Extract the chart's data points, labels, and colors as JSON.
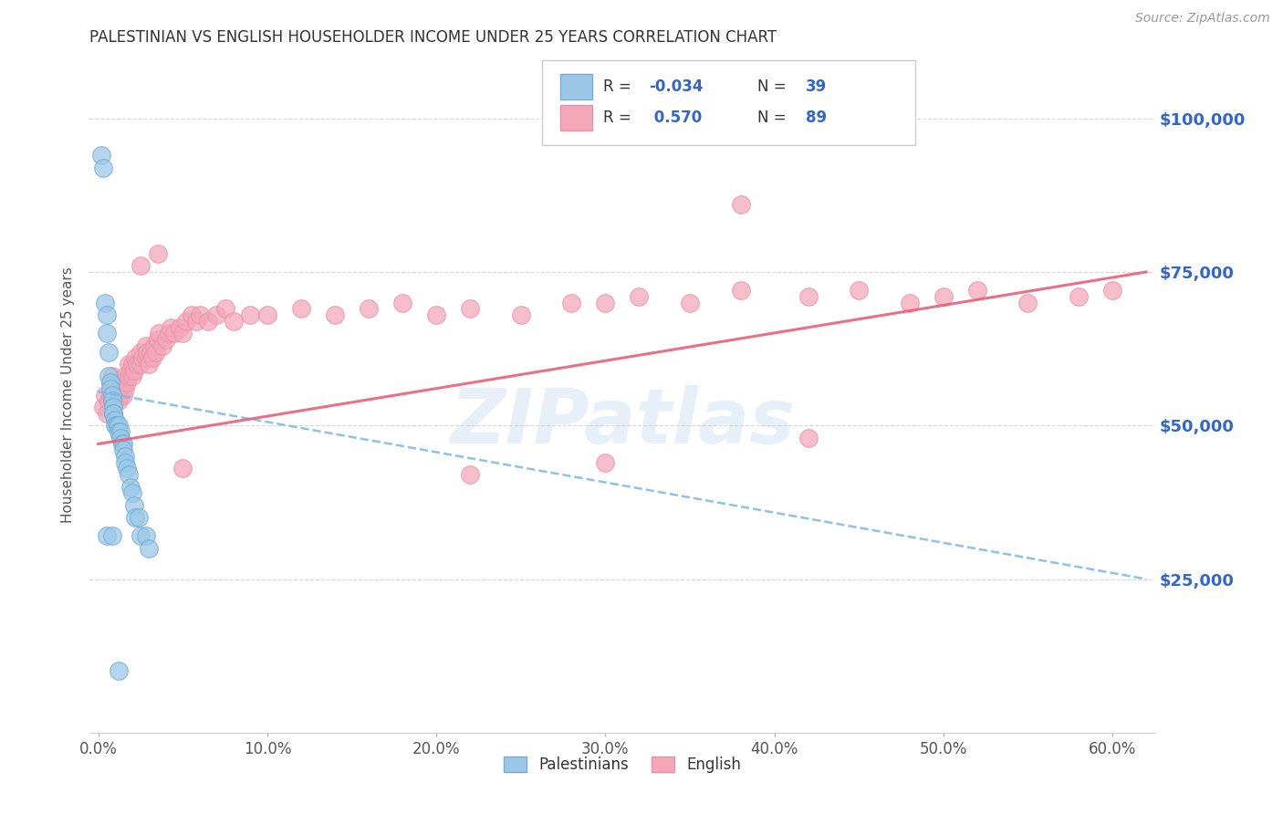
{
  "title": "PALESTINIAN VS ENGLISH HOUSEHOLDER INCOME UNDER 25 YEARS CORRELATION CHART",
  "source": "Source: ZipAtlas.com",
  "ylabel": "Householder Income Under 25 years",
  "xlabel_ticks": [
    "0.0%",
    "10.0%",
    "20.0%",
    "30.0%",
    "40.0%",
    "50.0%",
    "60.0%"
  ],
  "xlabel_vals": [
    0.0,
    0.1,
    0.2,
    0.3,
    0.4,
    0.5,
    0.6
  ],
  "ylabel_ticks": [
    "$25,000",
    "$50,000",
    "$75,000",
    "$100,000"
  ],
  "ylabel_vals": [
    25000,
    50000,
    75000,
    100000
  ],
  "ylim": [
    0,
    110000
  ],
  "xlim": [
    -0.005,
    0.625
  ],
  "blue_dot_color": "#9BC8E8",
  "pink_dot_color": "#F4A7B9",
  "blue_line_color": "#7BB8E0",
  "pink_line_color": "#E8607A",
  "R_blue": -0.034,
  "N_blue": 39,
  "R_pink": 0.57,
  "N_pink": 89,
  "watermark": "ZIPatlas",
  "legend_labels": [
    "Palestinians",
    "English"
  ],
  "blue_x": [
    0.002,
    0.003,
    0.004,
    0.005,
    0.005,
    0.006,
    0.006,
    0.007,
    0.007,
    0.008,
    0.008,
    0.009,
    0.009,
    0.009,
    0.01,
    0.01,
    0.011,
    0.012,
    0.012,
    0.013,
    0.013,
    0.014,
    0.015,
    0.015,
    0.016,
    0.016,
    0.017,
    0.018,
    0.019,
    0.02,
    0.021,
    0.022,
    0.024,
    0.025,
    0.028,
    0.03,
    0.005,
    0.008,
    0.012
  ],
  "blue_y": [
    94000,
    92000,
    70000,
    68000,
    65000,
    62000,
    58000,
    57000,
    56000,
    55000,
    54000,
    53000,
    52000,
    52000,
    51000,
    50000,
    50000,
    50000,
    49000,
    49000,
    48000,
    47000,
    47000,
    46000,
    45000,
    44000,
    43000,
    42000,
    40000,
    39000,
    37000,
    35000,
    35000,
    32000,
    32000,
    30000,
    32000,
    32000,
    10000
  ],
  "pink_x": [
    0.003,
    0.004,
    0.005,
    0.006,
    0.007,
    0.007,
    0.008,
    0.008,
    0.009,
    0.009,
    0.01,
    0.01,
    0.011,
    0.011,
    0.012,
    0.012,
    0.013,
    0.013,
    0.014,
    0.015,
    0.015,
    0.016,
    0.016,
    0.017,
    0.018,
    0.018,
    0.019,
    0.02,
    0.02,
    0.021,
    0.022,
    0.023,
    0.025,
    0.025,
    0.026,
    0.028,
    0.028,
    0.029,
    0.03,
    0.031,
    0.032,
    0.033,
    0.034,
    0.035,
    0.036,
    0.038,
    0.04,
    0.042,
    0.043,
    0.045,
    0.048,
    0.05,
    0.052,
    0.055,
    0.058,
    0.06,
    0.065,
    0.07,
    0.075,
    0.08,
    0.09,
    0.1,
    0.12,
    0.14,
    0.16,
    0.18,
    0.2,
    0.22,
    0.25,
    0.28,
    0.3,
    0.32,
    0.35,
    0.38,
    0.42,
    0.45,
    0.48,
    0.5,
    0.52,
    0.55,
    0.58,
    0.6,
    0.025,
    0.035,
    0.38,
    0.42,
    0.05,
    0.3,
    0.22
  ],
  "pink_y": [
    53000,
    55000,
    52000,
    54000,
    55000,
    57000,
    56000,
    58000,
    55000,
    57000,
    54000,
    56000,
    55000,
    57000,
    54000,
    56000,
    55000,
    57000,
    56000,
    55000,
    57000,
    56000,
    58000,
    57000,
    58000,
    60000,
    59000,
    58000,
    60000,
    59000,
    61000,
    60000,
    62000,
    60000,
    61000,
    63000,
    61000,
    62000,
    60000,
    62000,
    61000,
    63000,
    62000,
    64000,
    65000,
    63000,
    64000,
    65000,
    66000,
    65000,
    66000,
    65000,
    67000,
    68000,
    67000,
    68000,
    67000,
    68000,
    69000,
    67000,
    68000,
    68000,
    69000,
    68000,
    69000,
    70000,
    68000,
    69000,
    68000,
    70000,
    70000,
    71000,
    70000,
    72000,
    71000,
    72000,
    70000,
    71000,
    72000,
    70000,
    71000,
    72000,
    76000,
    78000,
    86000,
    48000,
    43000,
    44000,
    42000
  ],
  "blue_trend_x0": 0.0,
  "blue_trend_y0": 55500,
  "blue_trend_x1": 0.62,
  "blue_trend_y1": 25000,
  "pink_trend_x0": 0.0,
  "pink_trend_y0": 47000,
  "pink_trend_x1": 0.62,
  "pink_trend_y1": 75000
}
